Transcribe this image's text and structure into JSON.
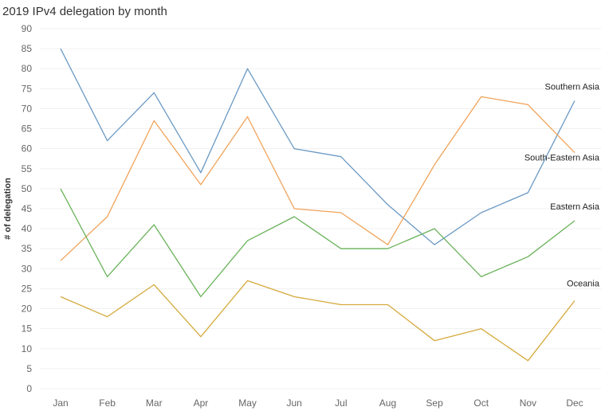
{
  "chart_data": {
    "type": "line",
    "title": "2019 IPv4 delegation by month",
    "xlabel": "",
    "ylabel": "# of delegation",
    "ylim": [
      0,
      90
    ],
    "yticks": [
      0,
      5,
      10,
      15,
      20,
      25,
      30,
      35,
      40,
      45,
      50,
      55,
      60,
      65,
      70,
      75,
      80,
      85,
      90
    ],
    "grid": "horizontal",
    "legend": "inline labels at right end of lines",
    "categories": [
      "Jan",
      "Feb",
      "Mar",
      "Apr",
      "May",
      "Jun",
      "Jul",
      "Aug",
      "Sep",
      "Oct",
      "Nov",
      "Dec"
    ],
    "series": [
      {
        "name": "Southern Asia",
        "color": "#6b9ac4",
        "values": [
          85,
          62,
          74,
          54,
          80,
          60,
          58,
          46,
          36,
          44,
          49,
          72
        ]
      },
      {
        "name": "South-Eastern Asia",
        "color": "#f0a35a",
        "values": [
          32,
          43,
          67,
          51,
          68,
          45,
          44,
          36,
          56,
          73,
          71,
          59
        ]
      },
      {
        "name": "Eastern Asia",
        "color": "#6ab35a",
        "values": [
          50,
          28,
          41,
          23,
          37,
          43,
          35,
          35,
          40,
          28,
          33,
          42
        ]
      },
      {
        "name": "Oceania",
        "color": "#d4aa3c",
        "values": [
          23,
          18,
          26,
          13,
          27,
          23,
          21,
          21,
          12,
          15,
          7,
          22
        ]
      }
    ]
  }
}
